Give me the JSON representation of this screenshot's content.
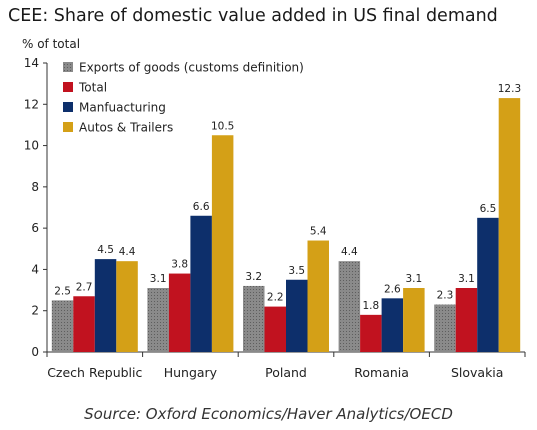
{
  "title": "CEE: Share of domestic value added in US final demand",
  "source": "Source: Oxford Economics/Haver Analytics/OECD",
  "colors": {
    "exports": "#7f7f7f",
    "total": "#c1121f",
    "manufacturing": "#0d2f6b",
    "autos": "#d4a017"
  },
  "chart_data": {
    "type": "bar",
    "title": "",
    "ylabel": "% of total",
    "ylim": [
      0,
      14
    ],
    "yticks": [
      "0",
      "2",
      "4",
      "6",
      "8",
      "10",
      "12",
      "14"
    ],
    "grid": false,
    "legend": "top-left",
    "categories": [
      "Czech Republic",
      "Hungary",
      "Poland",
      "Romania",
      "Slovakia"
    ],
    "series": [
      {
        "name": "Exports of goods (customs definition)",
        "values": [
          2.5,
          3.1,
          3.2,
          4.4,
          2.3
        ],
        "labels": [
          "2.5",
          "3.1",
          "3.2",
          "4.4",
          "2.3"
        ]
      },
      {
        "name": "Total",
        "values": [
          2.7,
          3.8,
          2.2,
          1.8,
          3.1
        ],
        "labels": [
          "2.7",
          "3.8",
          "2.2",
          "1.8",
          "3.1"
        ]
      },
      {
        "name": "Manfuacturing",
        "values": [
          4.5,
          6.6,
          3.5,
          2.6,
          6.5
        ],
        "labels": [
          "4.5",
          "6.6",
          "3.5",
          "2.6",
          "6.5"
        ]
      },
      {
        "name": "Autos & Trailers",
        "values": [
          4.4,
          10.5,
          5.4,
          3.1,
          12.3
        ],
        "labels": [
          "4.4",
          "10.5",
          "5.4",
          "3.1",
          "12.3"
        ]
      }
    ]
  }
}
